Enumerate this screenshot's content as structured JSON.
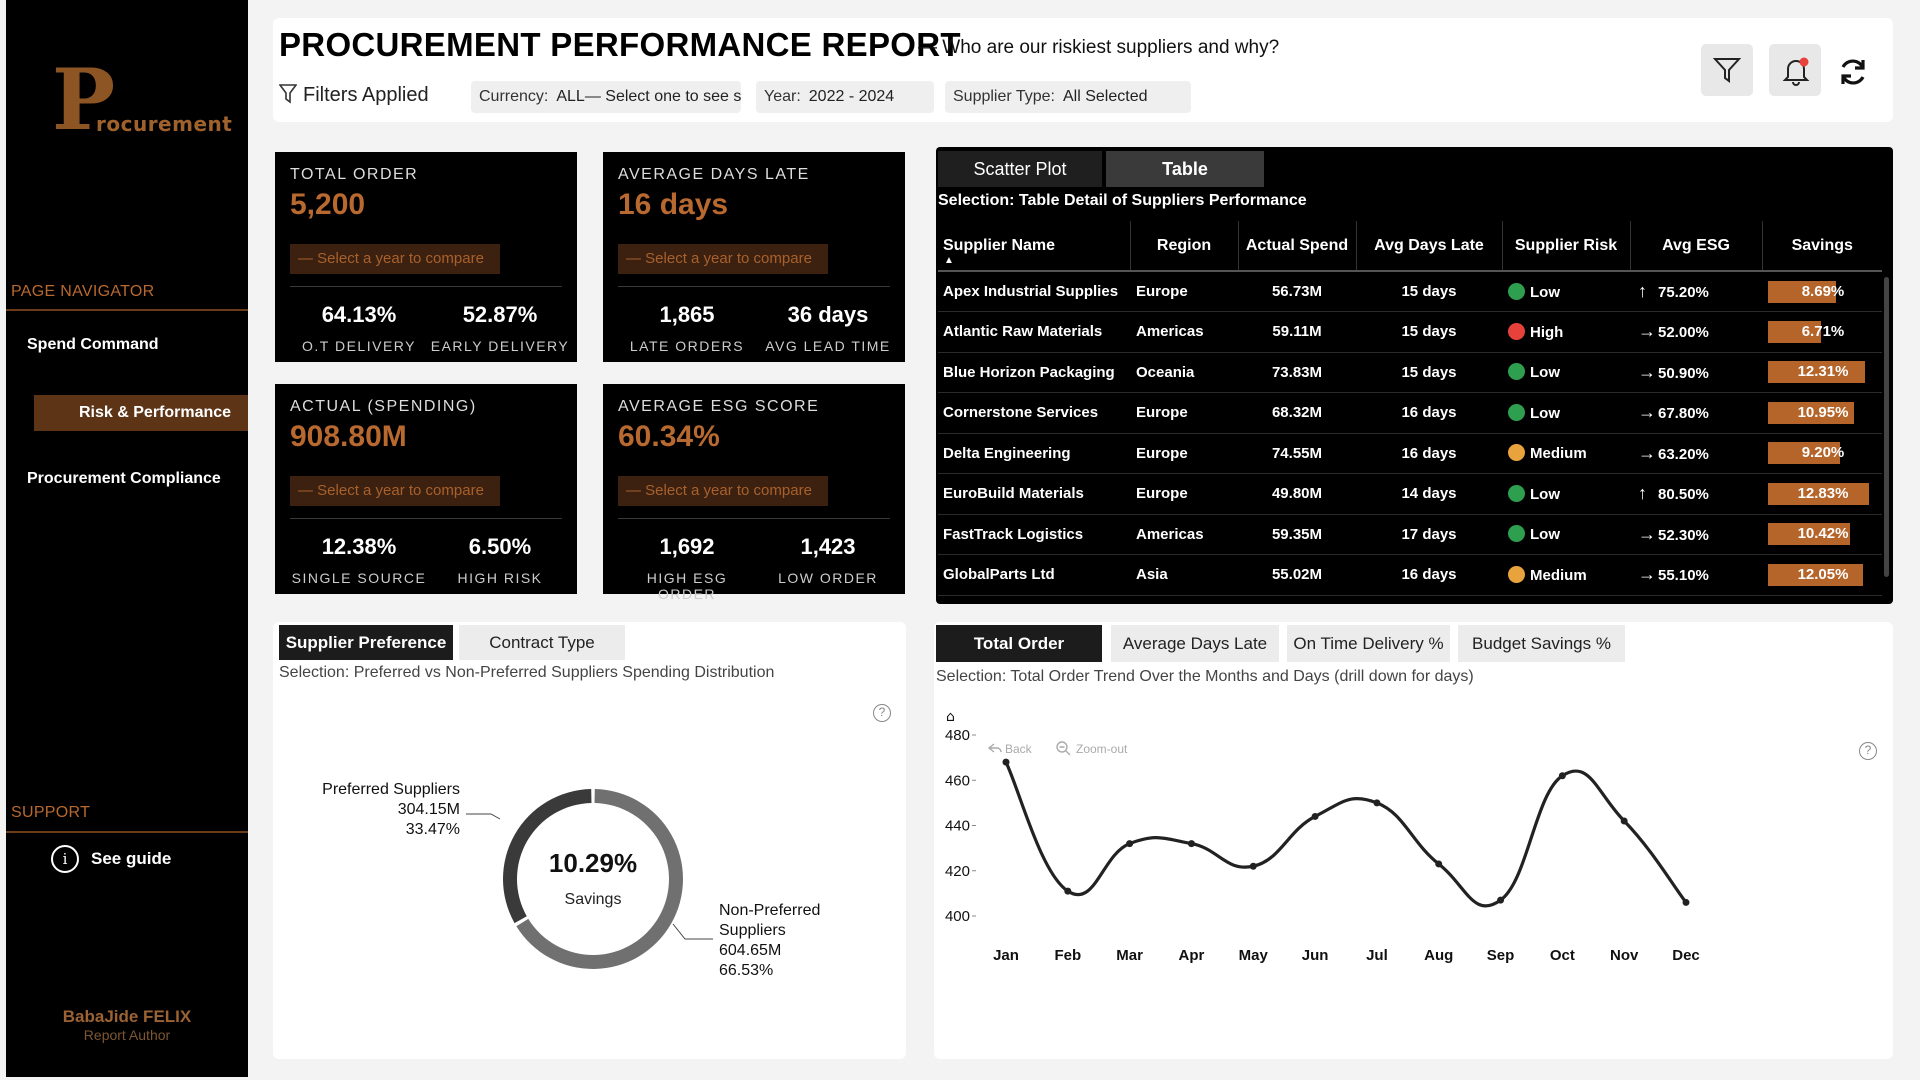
{
  "sidebar": {
    "logo_big": "P",
    "logo_rest": "rocurement",
    "nav_heading": "PAGE NAVIGATOR",
    "items": [
      "Spend Command",
      "Risk & Performance",
      "Procurement Compliance"
    ],
    "active_item": "Risk & Performance",
    "support_heading": "SUPPORT",
    "guide_icon": "i",
    "guide_label": "See guide",
    "author_name": "BabaJide FELIX",
    "author_role": "Report Author"
  },
  "header": {
    "title": "PROCUREMENT PERFORMANCE REPORT",
    "subtitle": "— Who are our riskiest suppliers and why?",
    "filters_label": "Filters Applied",
    "filters": [
      {
        "key": "Currency:",
        "value": "ALL— Select one to see symbol"
      },
      {
        "key": "Year:",
        "value": "2022 - 2024"
      },
      {
        "key": "Supplier Type:",
        "value": "All Selected"
      }
    ],
    "icons": [
      "filter-icon",
      "notification-bell-icon",
      "refresh-icon"
    ]
  },
  "kpis": [
    {
      "label": "TOTAL ORDER",
      "value": "5,200",
      "compare": "— Select a year to compare",
      "subs": [
        {
          "value": "64.13%",
          "label": "O.T DELIVERY"
        },
        {
          "value": "52.87%",
          "label": "EARLY DELIVERY"
        }
      ]
    },
    {
      "label": "AVERAGE DAYS LATE",
      "value": "16 days",
      "compare": "— Select a year to compare",
      "subs": [
        {
          "value": "1,865",
          "label": "LATE ORDERS"
        },
        {
          "value": "36 days",
          "label": "AVG LEAD TIME"
        }
      ]
    },
    {
      "label": "ACTUAL (SPENDING)",
      "value": "908.80M",
      "compare": "— Select a year to compare",
      "subs": [
        {
          "value": "12.38%",
          "label": "SINGLE SOURCE"
        },
        {
          "value": "6.50%",
          "label": "HIGH RISK"
        }
      ]
    },
    {
      "label": "AVERAGE ESG SCORE",
      "value": "60.34%",
      "compare": "— Select a year to compare",
      "subs": [
        {
          "value": "1,692",
          "label": "HIGH ESG ORDER"
        },
        {
          "value": "1,423",
          "label": "LOW ORDER"
        }
      ]
    }
  ],
  "table_panel": {
    "tabs": [
      "Scatter Plot",
      "Table"
    ],
    "active_tab": "Table",
    "selection": "Selection: Table Detail of Suppliers Performance",
    "columns": [
      "Supplier Name",
      "Region",
      "Actual Spend",
      "Avg Days Late",
      "Supplier Risk",
      "Avg ESG",
      "Savings"
    ],
    "risk_colors": {
      "Low": "#2e9e4f",
      "High": "#e8413c",
      "Medium": "#e8a33c"
    },
    "rows": [
      {
        "name": "Apex Industrial Supplies",
        "region": "Europe",
        "spend": "56.73M",
        "late": "15 days",
        "risk": "Low",
        "esg_trend": "up",
        "esg": "75.20%",
        "savings": "8.69%",
        "savings_pct": 8.69
      },
      {
        "name": "Atlantic Raw Materials",
        "region": "Americas",
        "spend": "59.11M",
        "late": "15 days",
        "risk": "High",
        "esg_trend": "flat",
        "esg": "52.00%",
        "savings": "6.71%",
        "savings_pct": 6.71
      },
      {
        "name": "Blue Horizon Packaging",
        "region": "Oceania",
        "spend": "73.83M",
        "late": "15 days",
        "risk": "Low",
        "esg_trend": "flat",
        "esg": "50.90%",
        "savings": "12.31%",
        "savings_pct": 12.31
      },
      {
        "name": "Cornerstone Services",
        "region": "Europe",
        "spend": "68.32M",
        "late": "16 days",
        "risk": "Low",
        "esg_trend": "flat",
        "esg": "67.80%",
        "savings": "10.95%",
        "savings_pct": 10.95
      },
      {
        "name": "Delta Engineering",
        "region": "Europe",
        "spend": "74.55M",
        "late": "16 days",
        "risk": "Medium",
        "esg_trend": "flat",
        "esg": "63.20%",
        "savings": "9.20%",
        "savings_pct": 9.2
      },
      {
        "name": "EuroBuild Materials",
        "region": "Europe",
        "spend": "49.80M",
        "late": "14 days",
        "risk": "Low",
        "esg_trend": "up",
        "esg": "80.50%",
        "savings": "12.83%",
        "savings_pct": 12.83
      },
      {
        "name": "FastTrack Logistics",
        "region": "Americas",
        "spend": "59.35M",
        "late": "17 days",
        "risk": "Low",
        "esg_trend": "flat",
        "esg": "52.30%",
        "savings": "10.42%",
        "savings_pct": 10.42
      },
      {
        "name": "GlobalParts Ltd",
        "region": "Asia",
        "spend": "55.02M",
        "late": "16 days",
        "risk": "Medium",
        "esg_trend": "flat",
        "esg": "55.10%",
        "savings": "12.05%",
        "savings_pct": 12.05
      }
    ]
  },
  "pref_panel": {
    "tabs": [
      "Supplier Preference",
      "Contract Type"
    ],
    "active_tab": "Supplier Preference",
    "selection": "Selection: Preferred vs Non-Preferred Suppliers Spending Distribution",
    "help_icon": "?"
  },
  "trend_panel": {
    "tabs": [
      "Total Order",
      "Average Days Late",
      "On Time Delivery %",
      "Budget Savings %"
    ],
    "active_tab": "Total Order",
    "selection": "Selection: Total Order Trend Over the Months and Days (drill down for days)",
    "controls": {
      "home_icon": "⌂",
      "back": "Back",
      "zoom_out": "Zoom-out"
    },
    "help_icon": "?"
  },
  "chart_data": [
    {
      "type": "pie",
      "center_value": "10.29%",
      "center_label": "Savings",
      "slices": [
        {
          "name": "Preferred Suppliers",
          "value": 304.15,
          "value_label": "304.15M",
          "percent_label": "33.47%",
          "color": "#3a3a3a"
        },
        {
          "name": "Non-Preferred Suppliers",
          "value": 604.65,
          "value_label": "604.65M",
          "percent_label": "66.53%",
          "color": "#707070"
        }
      ]
    },
    {
      "type": "line",
      "categories": [
        "Jan",
        "Feb",
        "Mar",
        "Apr",
        "May",
        "Jun",
        "Jul",
        "Aug",
        "Sep",
        "Oct",
        "Nov",
        "Dec"
      ],
      "values": [
        468,
        411,
        432,
        432,
        422,
        444,
        450,
        423,
        407,
        462,
        442,
        406
      ],
      "yticks": [
        400,
        420,
        440,
        460,
        480
      ],
      "ylim": [
        400,
        480
      ],
      "grid": false,
      "line_color": "#222222"
    }
  ]
}
